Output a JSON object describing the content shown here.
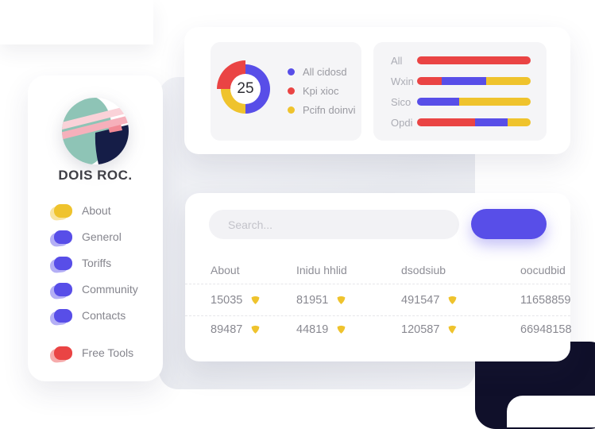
{
  "colors": {
    "indigo": "#584ee8",
    "red": "#ea4444",
    "yellow": "#efc32d",
    "navy": "#10102a",
    "teal": "#8ec4b6",
    "pink": "#f6b0bb",
    "pink_light": "#fad2d8"
  },
  "sidebar": {
    "brand": "DOIS ROC.",
    "items": [
      {
        "label": "About",
        "color": "yellow"
      },
      {
        "label": "Generol",
        "color": "indigo"
      },
      {
        "label": "Toriffs",
        "color": "indigo"
      },
      {
        "label": "Community",
        "color": "indigo"
      },
      {
        "label": "Contacts",
        "color": "indigo"
      },
      {
        "label": "Free Tools",
        "color": "red"
      }
    ]
  },
  "stats": {
    "donut": {
      "center_value": "25",
      "legend": [
        {
          "label": "All cidosd",
          "color": "indigo"
        },
        {
          "label": "Kpi xioc",
          "color": "red"
        },
        {
          "label": "Pcifn doinvi",
          "color": "yellow"
        }
      ],
      "visual_segments": [
        {
          "color": "indigo",
          "from": 0,
          "to": 50
        },
        {
          "color": "yellow",
          "from": 50,
          "to": 75
        },
        {
          "color": "red",
          "from": 75,
          "to": 100
        }
      ]
    },
    "bars": {
      "rows": [
        {
          "label": "All",
          "segments": [
            {
              "color": "red",
              "pct": 100
            }
          ]
        },
        {
          "label": "Wxin",
          "segments": [
            {
              "color": "red",
              "pct": 22
            },
            {
              "color": "indigo",
              "pct": 39
            },
            {
              "color": "yellow",
              "pct": 39
            }
          ]
        },
        {
          "label": "Sico",
          "segments": [
            {
              "color": "indigo",
              "pct": 37
            },
            {
              "color": "yellow",
              "pct": 63
            }
          ]
        },
        {
          "label": "Opdi",
          "segments": [
            {
              "color": "red",
              "pct": 51
            },
            {
              "color": "indigo",
              "pct": 29
            },
            {
              "color": "yellow",
              "pct": 20
            }
          ]
        }
      ]
    }
  },
  "table": {
    "search_placeholder": "Search...",
    "columns": [
      "About",
      "Inidu hhlid",
      "dsodsiub",
      "oocudbid"
    ],
    "rows": [
      {
        "cells": [
          {
            "value": "15035"
          },
          {
            "value": "81951"
          },
          {
            "value": "491547"
          },
          {
            "value": "11658859"
          }
        ]
      },
      {
        "cells": [
          {
            "value": "89487"
          },
          {
            "value": "44819"
          },
          {
            "value": "120587"
          },
          {
            "value": "66948158"
          }
        ]
      }
    ]
  },
  "chart_data": [
    {
      "type": "pie",
      "title": "",
      "center_label": "25",
      "labels": [
        "All cidosd",
        "Kpi xioc",
        "Pcifn doinvi"
      ],
      "values": [
        50,
        25,
        25
      ],
      "colors": [
        "#584ee8",
        "#ea4444",
        "#efc32d"
      ],
      "legend_position": "right"
    },
    {
      "type": "bar",
      "orientation": "horizontal",
      "stacked": true,
      "categories": [
        "All",
        "Wxin",
        "Sico",
        "Opdi"
      ],
      "series": [
        {
          "name": "red",
          "values": [
            100,
            22,
            0,
            51
          ]
        },
        {
          "name": "indigo",
          "values": [
            0,
            39,
            37,
            29
          ]
        },
        {
          "name": "yellow",
          "values": [
            0,
            39,
            63,
            20
          ]
        }
      ],
      "xlim": [
        0,
        100
      ],
      "grid": false
    }
  ]
}
